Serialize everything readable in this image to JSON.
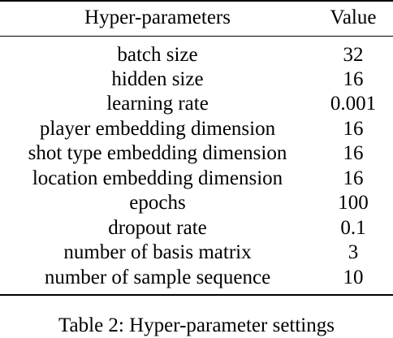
{
  "table": {
    "headers": {
      "param": "Hyper-parameters",
      "value": "Value"
    },
    "rows": [
      {
        "param": "batch size",
        "value": "32"
      },
      {
        "param": "hidden size",
        "value": "16"
      },
      {
        "param": "learning rate",
        "value": "0.001"
      },
      {
        "param": "player embedding dimension",
        "value": "16"
      },
      {
        "param": "shot type embedding dimension",
        "value": "16"
      },
      {
        "param": "location embedding dimension",
        "value": "16"
      },
      {
        "param": "epochs",
        "value": "100"
      },
      {
        "param": "dropout rate",
        "value": "0.1"
      },
      {
        "param": "number of basis matrix",
        "value": "3"
      },
      {
        "param": "number of sample sequence",
        "value": "10"
      }
    ]
  },
  "caption": "Table 2: Hyper-parameter settings"
}
